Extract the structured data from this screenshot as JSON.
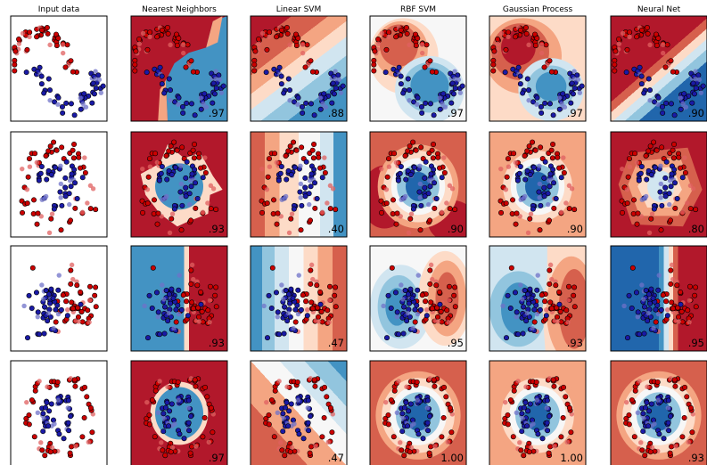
{
  "chart_data": {
    "type": "scatter",
    "column_titles": [
      "Input data",
      "Nearest Neighbors",
      "Linear SVM",
      "RBF SVM",
      "Gaussian Process",
      "Neural Net"
    ],
    "datasets": [
      "moons",
      "circles",
      "linear",
      "circles"
    ],
    "scores": [
      [
        "",
        ".97",
        ".88",
        ".97",
        ".97",
        ".90"
      ],
      [
        "",
        ".93",
        ".40",
        ".90",
        ".90",
        ".80"
      ],
      [
        "",
        ".93",
        ".47",
        ".95",
        ".93",
        ".95"
      ],
      [
        "",
        ".97",
        ".47",
        "1.00",
        "1.00",
        ".93"
      ]
    ],
    "class_colors": {
      "class_0": "#cc0000",
      "class_1": "#1a1aa6"
    },
    "colormap": [
      "#b2182b",
      "#d6604d",
      "#f4a582",
      "#fddbc7",
      "#f7f7f7",
      "#d1e5f0",
      "#92c5de",
      "#4393c3",
      "#2166ac"
    ],
    "grid": false,
    "legend": "none"
  }
}
